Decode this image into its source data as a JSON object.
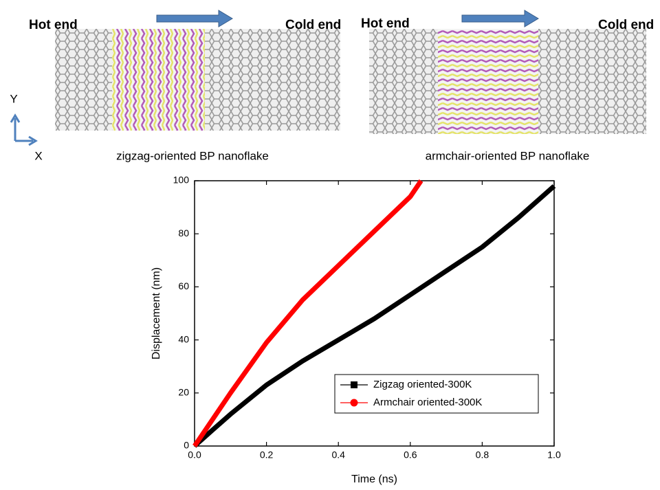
{
  "images": [
    {
      "hot_label": "Hot end",
      "cold_label": "Cold end",
      "caption": "zigzag-oriented BP nanoflake"
    },
    {
      "hot_label": "Hot end",
      "cold_label": "Cold end",
      "caption": "armchair-oriented BP nanoflake"
    }
  ],
  "axes_icon": {
    "x": "X",
    "y": "Y"
  },
  "chart_data": {
    "type": "line",
    "x_label": "Time (ns)",
    "y_label": "Displacement (nm)",
    "xlim": [
      0,
      1
    ],
    "xticks": [
      {
        "value": 0,
        "label": "0.0"
      },
      0.2,
      0.4,
      0.6,
      0.8,
      {
        "value": 1,
        "label": "1.0"
      }
    ],
    "ylim": [
      0,
      100
    ],
    "yticks": [
      0,
      20,
      40,
      60,
      80,
      100
    ],
    "legend": "lower right",
    "series": [
      {
        "name": "Zigzag oriented-300K",
        "color": "#000000",
        "marker": "square",
        "x": [
          0,
          0.05,
          0.1,
          0.2,
          0.3,
          0.4,
          0.5,
          0.6,
          0.7,
          0.8,
          0.9,
          1
        ],
        "values": [
          0,
          6,
          12,
          23,
          32,
          40,
          48,
          57,
          66,
          75,
          86,
          98
        ]
      },
      {
        "name": "Armchair oriented-300K",
        "color": "#ff0000",
        "marker": "circle",
        "x": [
          0,
          0.1,
          0.2,
          0.3,
          0.4,
          0.5,
          0.6,
          0.63
        ],
        "values": [
          0,
          20,
          39,
          55,
          68,
          81,
          94,
          100
        ]
      }
    ]
  }
}
